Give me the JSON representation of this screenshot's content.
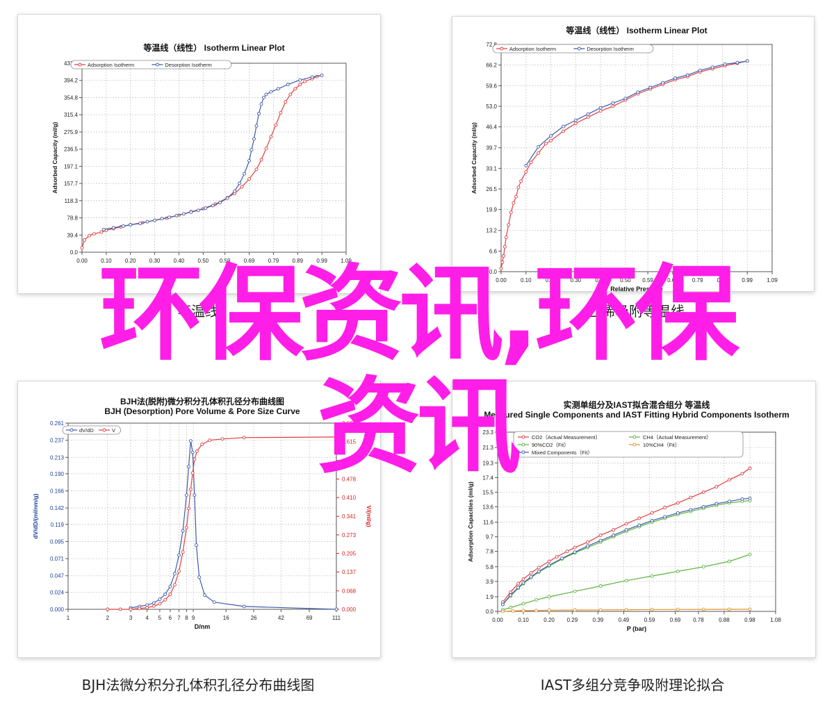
{
  "captions": {
    "top_left": "等温线",
    "top_right": "乙烯吸附等温线",
    "bottom_left": "BJH法微分积分孔体积孔径分布曲线图",
    "bottom_right": "IAST多组分竞争吸附理论拟合"
  },
  "overlay": {
    "line1": "环保资讯,环保",
    "line2": "资讯",
    "color": "#ff1ee8"
  },
  "chart_data": [
    {
      "id": "tl",
      "type": "line",
      "title": "等温线（线性） Isotherm Linear Plot",
      "xlabel": "",
      "ylabel": "Adsorbed Capacity (ml/g)",
      "xlim": [
        0,
        1.09
      ],
      "ylim": [
        0,
        433.6
      ],
      "xticks": [
        "0.00",
        "0.10",
        "0.20",
        "0.30",
        "0.40",
        "0.50",
        "0.59",
        "0.69",
        "0.79",
        "0.89",
        "0.99",
        "1.09"
      ],
      "yticks": [
        "0.0",
        "39.4",
        "78.8",
        "118.3",
        "157.7",
        "197.1",
        "236.5",
        "275.9",
        "315.4",
        "354.8",
        "394.2",
        "433.6"
      ],
      "legend": "top-left",
      "series": [
        {
          "name": "Adsorption Isotherm",
          "color": "#e03c3c",
          "x": [
            0.0,
            0.01,
            0.03,
            0.05,
            0.08,
            0.1,
            0.13,
            0.16,
            0.2,
            0.25,
            0.3,
            0.35,
            0.4,
            0.45,
            0.5,
            0.55,
            0.6,
            0.63,
            0.66,
            0.69,
            0.72,
            0.74,
            0.76,
            0.78,
            0.8,
            0.82,
            0.84,
            0.86,
            0.88,
            0.9,
            0.92,
            0.95,
            0.97,
            0.99
          ],
          "y": [
            10,
            28,
            38,
            42,
            46,
            50,
            54,
            58,
            63,
            68,
            73,
            78,
            85,
            93,
            100,
            110,
            125,
            135,
            150,
            168,
            190,
            212,
            238,
            265,
            292,
            320,
            345,
            362,
            375,
            385,
            392,
            398,
            403,
            406
          ]
        },
        {
          "name": "Desorption Isotherm",
          "color": "#3c5aa8",
          "x": [
            0.09,
            0.13,
            0.17,
            0.2,
            0.24,
            0.27,
            0.3,
            0.33,
            0.36,
            0.39,
            0.42,
            0.45,
            0.48,
            0.51,
            0.54,
            0.57,
            0.6,
            0.63,
            0.65,
            0.67,
            0.69,
            0.7,
            0.71,
            0.72,
            0.73,
            0.74,
            0.75,
            0.76,
            0.78,
            0.81,
            0.85,
            0.9,
            0.95,
            0.99
          ],
          "y": [
            52,
            56,
            60,
            63,
            66,
            70,
            73,
            77,
            80,
            84,
            88,
            92,
            96,
            101,
            107,
            114,
            124,
            140,
            158,
            180,
            210,
            235,
            260,
            290,
            318,
            340,
            355,
            362,
            368,
            375,
            385,
            395,
            402,
            406
          ]
        }
      ]
    },
    {
      "id": "tr",
      "type": "line",
      "title": "等温线（线性） Isotherm Linear Plot",
      "xlabel": "Relative Pressure",
      "ylabel": "Adsorbed Capacity (ml/g)",
      "xlim": [
        0,
        1.09
      ],
      "ylim": [
        0,
        72.8
      ],
      "xticks": [
        "0.00",
        "0.10",
        "0.20",
        "0.30",
        "0.40",
        "0.50",
        "0.59",
        "0.69",
        "0.79",
        "0.89",
        "0.99",
        "1.09"
      ],
      "yticks": [
        "0.0",
        "6.6",
        "13.2",
        "19.9",
        "26.5",
        "33.1",
        "39.7",
        "46.4",
        "53.0",
        "59.6",
        "66.2",
        "72.8"
      ],
      "legend": "top-left",
      "series": [
        {
          "name": "Adsorption Isotherm",
          "color": "#e03c3c",
          "x": [
            0.0,
            0.005,
            0.01,
            0.015,
            0.02,
            0.03,
            0.04,
            0.05,
            0.06,
            0.07,
            0.08,
            0.1,
            0.12,
            0.15,
            0.18,
            0.2,
            0.25,
            0.3,
            0.35,
            0.4,
            0.45,
            0.5,
            0.55,
            0.6,
            0.65,
            0.7,
            0.75,
            0.8,
            0.85,
            0.9,
            0.95,
            0.99
          ],
          "y": [
            1,
            3,
            5,
            8,
            11,
            15,
            19,
            22,
            24,
            27,
            29,
            32,
            35,
            38,
            41,
            42,
            45,
            47.5,
            49.5,
            51.5,
            53,
            55,
            57,
            58.5,
            60,
            61.5,
            62.5,
            64,
            65,
            66,
            66.8,
            67.5
          ]
        },
        {
          "name": "Desorption Isotherm",
          "color": "#3c5aa8",
          "x": [
            0.1,
            0.15,
            0.2,
            0.25,
            0.3,
            0.35,
            0.4,
            0.45,
            0.5,
            0.55,
            0.6,
            0.65,
            0.7,
            0.75,
            0.8,
            0.85,
            0.9,
            0.95,
            0.99
          ],
          "y": [
            34,
            40,
            43.5,
            46.5,
            48.5,
            50.5,
            52.5,
            54,
            55.5,
            57.5,
            59,
            60.5,
            62,
            63,
            64.5,
            65.5,
            66.5,
            67,
            67.5
          ]
        }
      ]
    },
    {
      "id": "bl",
      "type": "line",
      "title": "BJH法(脱附)微分积分孔体积孔径分布曲线图",
      "subtitle": "BJH (Desorption) Pore Volume & Pore Size Curve",
      "xlabel": "D/nm",
      "ylabel": "dV/dD/(ml/nm/g)",
      "y2label": "V/(ml/g)",
      "xscale": "log",
      "xlim": [
        1,
        111
      ],
      "ylim": [
        0,
        0.261
      ],
      "y2lim": [
        0,
        0.683
      ],
      "xticks": [
        "1",
        "2",
        "3",
        "4",
        "5",
        "6",
        "7",
        "8",
        "9",
        "16",
        "26",
        "42",
        "69",
        "111"
      ],
      "xtick_values": [
        1,
        2,
        3,
        4,
        5,
        6,
        7,
        8,
        9,
        16,
        26,
        42,
        69,
        111
      ],
      "yticks": [
        "0.000",
        "0.024",
        "0.047",
        "0.071",
        "0.095",
        "0.119",
        "0.142",
        "0.166",
        "0.190",
        "0.213",
        "0.237",
        "0.261"
      ],
      "y2ticks": [
        "0.000",
        "0.068",
        "0.137",
        "0.205",
        "0.273",
        "0.341",
        "0.410",
        "0.478",
        "0.546",
        "0.615",
        "0.683"
      ],
      "legend": "top-left",
      "series": [
        {
          "name": "dV/dD",
          "color": "#3c5aa8",
          "axis": "left",
          "x": [
            3.0,
            3.5,
            4.0,
            4.5,
            5.0,
            5.5,
            6.0,
            6.5,
            7.0,
            7.5,
            8.0,
            8.3,
            8.6,
            8.9,
            9.2,
            9.5,
            10,
            11,
            13,
            22,
            111
          ],
          "y": [
            0.002,
            0.004,
            0.006,
            0.009,
            0.014,
            0.021,
            0.032,
            0.05,
            0.076,
            0.11,
            0.16,
            0.2,
            0.236,
            0.22,
            0.16,
            0.09,
            0.045,
            0.02,
            0.01,
            0.004,
            0.0
          ]
        },
        {
          "name": "V",
          "color": "#e03c3c",
          "axis": "right",
          "x": [
            2.0,
            2.5,
            3.0,
            3.5,
            4.0,
            4.5,
            5.0,
            5.5,
            6.0,
            6.5,
            7.0,
            7.5,
            8.0,
            8.3,
            8.6,
            8.9,
            9.2,
            9.6,
            10.5,
            12,
            15,
            22,
            111
          ],
          "y": [
            0.0,
            0.0,
            0.0,
            0.003,
            0.006,
            0.012,
            0.02,
            0.035,
            0.055,
            0.09,
            0.14,
            0.21,
            0.3,
            0.37,
            0.44,
            0.5,
            0.55,
            0.58,
            0.605,
            0.62,
            0.625,
            0.63,
            0.632
          ]
        }
      ]
    },
    {
      "id": "br",
      "type": "line",
      "title": "实测单组分及IAST拟合混合组分 等温线",
      "subtitle": "Measured Single Components and IAST Fitting Hybrid Components Isotherm",
      "xlabel": "P (bar)",
      "ylabel": "Adsorption Capacities (ml/g)",
      "xlim": [
        0,
        1.08
      ],
      "ylim": [
        0,
        23.3
      ],
      "xticks": [
        "0.00",
        "0.10",
        "0.20",
        "0.29",
        "0.39",
        "0.49",
        "0.59",
        "0.69",
        "0.78",
        "0.88",
        "0.98",
        "1.08"
      ],
      "yticks": [
        "0.0",
        "1.9",
        "3.9",
        "5.8",
        "7.8",
        "9.7",
        "11.6",
        "13.6",
        "15.5",
        "17.4",
        "19.3",
        "21.3",
        "23.3"
      ],
      "legend": "top-left",
      "series": [
        {
          "name": "CO2（Actual Measurement）",
          "color": "#e03c3c",
          "x": [
            0.02,
            0.05,
            0.08,
            0.1,
            0.13,
            0.16,
            0.2,
            0.23,
            0.27,
            0.3,
            0.35,
            0.4,
            0.45,
            0.5,
            0.55,
            0.6,
            0.65,
            0.7,
            0.75,
            0.8,
            0.85,
            0.9,
            0.95,
            0.98
          ],
          "y": [
            1.2,
            2.5,
            3.6,
            4.2,
            5.0,
            5.7,
            6.5,
            7.1,
            7.8,
            8.3,
            9.0,
            9.9,
            10.6,
            11.4,
            12.1,
            12.8,
            13.5,
            14.1,
            14.8,
            15.5,
            16.2,
            17.1,
            17.9,
            18.6
          ]
        },
        {
          "name": "CH4（Actual Measurement）",
          "color": "#5ab43c",
          "x": [
            0.02,
            0.05,
            0.1,
            0.15,
            0.2,
            0.3,
            0.4,
            0.5,
            0.6,
            0.7,
            0.8,
            0.9,
            0.98
          ],
          "y": [
            0.2,
            0.5,
            1.0,
            1.5,
            1.9,
            2.6,
            3.3,
            4.0,
            4.6,
            5.2,
            5.8,
            6.5,
            7.4
          ]
        },
        {
          "name": "90%CO2（Fit）",
          "color": "#5ab43c",
          "x": [
            0.02,
            0.05,
            0.08,
            0.1,
            0.13,
            0.16,
            0.2,
            0.25,
            0.3,
            0.35,
            0.4,
            0.45,
            0.5,
            0.55,
            0.6,
            0.65,
            0.7,
            0.75,
            0.8,
            0.85,
            0.9,
            0.95,
            0.98
          ],
          "y": [
            0.9,
            2.0,
            3.0,
            3.6,
            4.4,
            5.1,
            5.9,
            6.8,
            7.6,
            8.3,
            9.0,
            9.7,
            10.4,
            11.0,
            11.6,
            12.1,
            12.6,
            13.0,
            13.4,
            13.8,
            14.1,
            14.3,
            14.4
          ]
        },
        {
          "name": "10%CH4（Fit）",
          "color": "#e8902a",
          "x": [
            0.02,
            0.06,
            0.1,
            0.15,
            0.2,
            0.3,
            0.4,
            0.5,
            0.6,
            0.7,
            0.8,
            0.9,
            0.98
          ],
          "y": [
            0.0,
            0.05,
            0.1,
            0.12,
            0.15,
            0.18,
            0.2,
            0.22,
            0.24,
            0.25,
            0.26,
            0.27,
            0.28
          ]
        },
        {
          "name": "Mixed Components（Fit）",
          "color": "#3c5aa8",
          "x": [
            0.02,
            0.05,
            0.08,
            0.1,
            0.13,
            0.16,
            0.2,
            0.25,
            0.3,
            0.35,
            0.4,
            0.45,
            0.5,
            0.55,
            0.6,
            0.65,
            0.7,
            0.75,
            0.8,
            0.85,
            0.9,
            0.95,
            0.98
          ],
          "y": [
            0.9,
            2.1,
            3.1,
            3.7,
            4.5,
            5.2,
            6.0,
            6.9,
            7.7,
            8.5,
            9.2,
            9.9,
            10.6,
            11.2,
            11.8,
            12.3,
            12.8,
            13.2,
            13.6,
            14.0,
            14.3,
            14.6,
            14.7
          ]
        }
      ]
    }
  ]
}
